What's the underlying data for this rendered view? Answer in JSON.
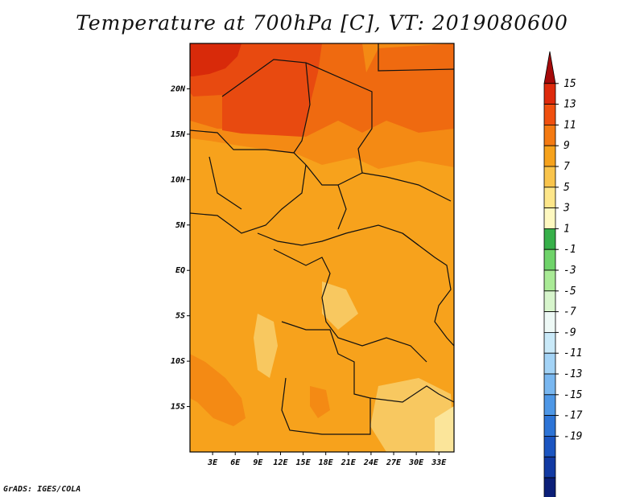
{
  "title": "Temperature at 700hPa [C], VT: 2019080600",
  "credit": "GrADS: IGES/COLA",
  "colors": {
    "frame": "#000000",
    "land_border": "#111111",
    "field_bands": [
      "#f7a21c",
      "#f5ab30",
      "#f48a14",
      "#ef6a10",
      "#e84a10",
      "#d82a0a",
      "#f8c860",
      "#fbe59a"
    ]
  },
  "map": {
    "lat_range": [
      -20,
      25
    ],
    "lon_range": [
      0,
      35
    ],
    "lat_ticks": [
      {
        "value": 20,
        "label": "20N"
      },
      {
        "value": 15,
        "label": "15N"
      },
      {
        "value": 10,
        "label": "10N"
      },
      {
        "value": 5,
        "label": "5N"
      },
      {
        "value": 0,
        "label": "EQ"
      },
      {
        "value": -5,
        "label": "5S"
      },
      {
        "value": -10,
        "label": "10S"
      },
      {
        "value": -15,
        "label": "15S"
      }
    ],
    "lon_ticks": [
      {
        "value": 3,
        "label": "3E"
      },
      {
        "value": 6,
        "label": "6E"
      },
      {
        "value": 9,
        "label": "9E"
      },
      {
        "value": 12,
        "label": "12E"
      },
      {
        "value": 15,
        "label": "15E"
      },
      {
        "value": 18,
        "label": "18E"
      },
      {
        "value": 21,
        "label": "21E"
      },
      {
        "value": 24,
        "label": "24E"
      },
      {
        "value": 27,
        "label": "27E"
      },
      {
        "value": 30,
        "label": "30E"
      },
      {
        "value": 33,
        "label": "33E"
      }
    ]
  },
  "colorbar": {
    "levels": [
      {
        "label": "15",
        "color": "#a50a0a"
      },
      {
        "label": "13",
        "color": "#de2a0c"
      },
      {
        "label": "11",
        "color": "#f0500f"
      },
      {
        "label": "9",
        "color": "#f47a12"
      },
      {
        "label": "7",
        "color": "#f6a21c"
      },
      {
        "label": "5",
        "color": "#f9c44c"
      },
      {
        "label": "3",
        "color": "#fde68a"
      },
      {
        "label": "1",
        "color": "#fef8c0"
      },
      {
        "label": "-1",
        "color": "#37b04a"
      },
      {
        "label": "-3",
        "color": "#6fd36a"
      },
      {
        "label": "-5",
        "color": "#a9ea96"
      },
      {
        "label": "-7",
        "color": "#d7f5cc"
      },
      {
        "label": "-9",
        "color": "#eef9f6"
      },
      {
        "label": "-11",
        "color": "#c9e9f8"
      },
      {
        "label": "-13",
        "color": "#a3d3f6"
      },
      {
        "label": "-15",
        "color": "#79b7f0"
      },
      {
        "label": "-17",
        "color": "#4e97e6"
      },
      {
        "label": "-19",
        "color": "#2d74d6"
      },
      {
        "label": "",
        "color": "#1b55c1"
      },
      {
        "label": "",
        "color": "#123aa3"
      },
      {
        "label": "",
        "color": "#0b1f78"
      },
      {
        "label": "",
        "color": "#e0e0f8"
      }
    ]
  }
}
